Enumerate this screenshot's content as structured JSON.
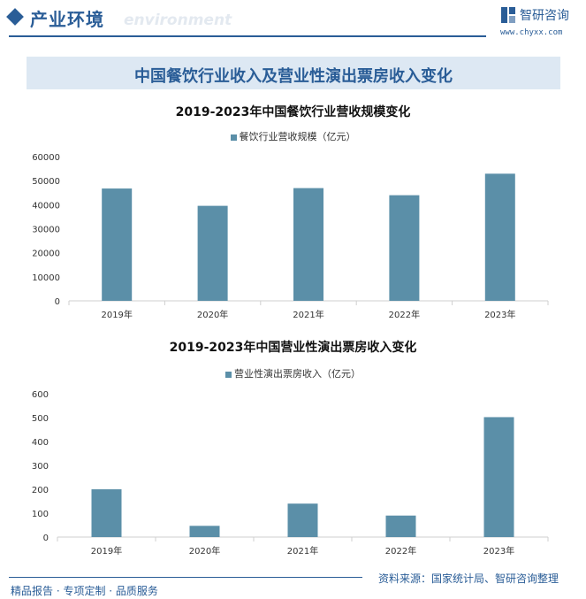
{
  "header": {
    "section_title": "产业环境",
    "section_subtitle": "environment",
    "brand_name": "智研咨询",
    "brand_url": "www.chyxx.com"
  },
  "main_title": "中国餐饮行业收入及营业性演出票房收入变化",
  "colors": {
    "brand": "#2a5d97",
    "bar": "#5b8fa8",
    "title_band": "#dde8f3"
  },
  "chart_data": [
    {
      "type": "bar",
      "title": "2019-2023年中国餐饮行业营收规模变化",
      "categories": [
        "2019年",
        "2020年",
        "2021年",
        "2022年",
        "2023年"
      ],
      "series": [
        {
          "name": "餐饮行业营收规模（亿元）",
          "values": [
            46721,
            39527,
            46895,
            43941,
            52890
          ]
        }
      ],
      "yticks": [
        "0",
        "10000",
        "20000",
        "30000",
        "40000",
        "50000",
        "60000"
      ],
      "ylim": [
        0,
        60000
      ],
      "legend": "top-center",
      "grid": false
    },
    {
      "type": "bar",
      "title": "2019-2023年中国营业性演出票房收入变化",
      "categories": [
        "2019年",
        "2020年",
        "2021年",
        "2022年",
        "2023年"
      ],
      "series": [
        {
          "name": "营业性演出票房收入（亿元）",
          "values": [
            200,
            47,
            140,
            90,
            502
          ]
        }
      ],
      "yticks": [
        "0",
        "100",
        "200",
        "300",
        "400",
        "500",
        "600"
      ],
      "ylim": [
        0,
        600
      ],
      "legend": "top-center",
      "grid": false
    }
  ],
  "footer": {
    "left": "精品报告 · 专项定制 · 品质服务",
    "source": "资料来源：国家统计局、智研咨询整理"
  }
}
